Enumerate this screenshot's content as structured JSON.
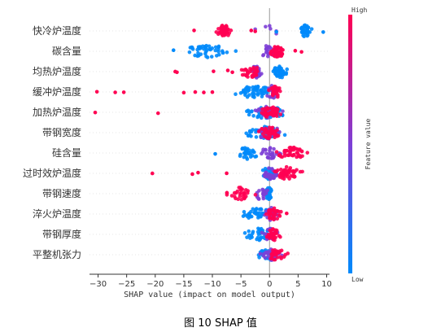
{
  "chart_data": {
    "type": "scatter",
    "subtype": "shap-beeswarm",
    "xlabel": "SHAP value (impact on model output)",
    "xticks": [
      -30,
      -25,
      -20,
      -15,
      -10,
      -5,
      0,
      5,
      10
    ],
    "xlim": [
      -31.5,
      10.5
    ],
    "features": [
      {
        "name": "快冷炉温度",
        "low": [
          [
            5.0,
            7.5,
            40
          ]
        ],
        "high": [
          [
            -9.8,
            -6.2,
            40
          ]
        ],
        "mid": [
          [
            -4,
            4,
            6
          ]
        ],
        "low_out": [
          1.2,
          9.4
        ],
        "high_out": [
          -13.2,
          -3.2,
          -2.5
        ]
      },
      {
        "name": "碳含量",
        "low": [
          [
            -16.5,
            -5.0,
            45
          ]
        ],
        "high": [
          [
            -0.5,
            3.5,
            55
          ]
        ],
        "mid": [
          [
            -2.5,
            1.5,
            20
          ]
        ],
        "low_out": [
          -16.8
        ],
        "high_out": [
          4.5,
          5.6
        ]
      },
      {
        "name": "均热炉温度",
        "low": [
          [
            0.0,
            4.0,
            40
          ]
        ],
        "high": [
          [
            -5.5,
            -1.0,
            35
          ]
        ],
        "mid": [
          [
            -3.5,
            -1.2,
            30
          ]
        ],
        "low_out": [],
        "high_out": [
          -16.5,
          -16.2,
          -9.8,
          -7.3,
          -6.5,
          -2.2
        ]
      },
      {
        "name": "缓冲炉温度",
        "low": [
          [
            -7.2,
            1.8,
            55
          ]
        ],
        "high": [
          [
            -0.5,
            2.5,
            30
          ]
        ],
        "mid": [
          [
            -1.5,
            2.5,
            25
          ]
        ],
        "low_out": [],
        "high_out": [
          -30.2,
          -27.0,
          -25.5,
          -15.0,
          -13.0,
          -11.5,
          -10.0
        ]
      },
      {
        "name": "加热炉温度",
        "low": [
          [
            -5.5,
            4.0,
            45
          ]
        ],
        "high": [
          [
            -2.5,
            2.5,
            45
          ]
        ],
        "mid": [
          [
            -3.0,
            2.5,
            30
          ]
        ],
        "low_out": [],
        "high_out": [
          -30.5,
          -19.5
        ]
      },
      {
        "name": "带钢宽度",
        "low": [
          [
            -5.5,
            3.8,
            40
          ]
        ],
        "high": [
          [
            -3.0,
            3.0,
            35
          ]
        ],
        "mid": [
          [
            -3.5,
            3.0,
            30
          ]
        ],
        "low_out": [],
        "high_out": []
      },
      {
        "name": "硅含量",
        "low": [
          [
            -6.5,
            -1.0,
            30
          ]
        ],
        "high": [
          [
            0.5,
            7.5,
            45
          ]
        ],
        "mid": [
          [
            -2.5,
            2.5,
            30
          ]
        ],
        "low_out": [
          -9.5
        ],
        "high_out": []
      },
      {
        "name": "过时效炉温度",
        "low": [
          [
            -2.0,
            2.0,
            35
          ]
        ],
        "high": [
          [
            0.0,
            6.0,
            45
          ]
        ],
        "mid": [
          [
            -1.5,
            2.0,
            25
          ]
        ],
        "low_out": [],
        "high_out": [
          -20.5,
          -13.5,
          -12.5,
          -7.5
        ]
      },
      {
        "name": "带钢速度",
        "low": [
          [
            -1.0,
            0.8,
            35
          ]
        ],
        "high": [
          [
            -8.5,
            -2.0,
            30
          ]
        ],
        "mid": [
          [
            -4.0,
            0.5,
            20
          ]
        ],
        "low_out": [],
        "high_out": []
      },
      {
        "name": "淬火炉温度",
        "low": [
          [
            -5.5,
            1.5,
            40
          ]
        ],
        "high": [
          [
            -1.0,
            2.5,
            30
          ]
        ],
        "mid": [
          [
            -2.0,
            2.5,
            20
          ]
        ],
        "low_out": [],
        "high_out": [
          3.0
        ]
      },
      {
        "name": "带钢厚度",
        "low": [
          [
            -5.0,
            1.0,
            35
          ]
        ],
        "high": [
          [
            -1.0,
            2.5,
            30
          ]
        ],
        "mid": [
          [
            -2.0,
            2.0,
            25
          ]
        ],
        "low_out": [],
        "high_out": []
      },
      {
        "name": "平整机张力",
        "low": [
          [
            -2.5,
            2.0,
            35
          ]
        ],
        "high": [
          [
            -1.0,
            3.5,
            30
          ]
        ],
        "mid": [
          [
            -2.0,
            2.5,
            25
          ]
        ],
        "low_out": [],
        "high_out": []
      }
    ],
    "colorbar": {
      "label": "Feature value",
      "high": "High",
      "low": "Low"
    },
    "colors": {
      "low": "#008afb",
      "mid": "#7d3fd6",
      "high": "#ff0052",
      "zero_line": "#999999"
    }
  },
  "caption": "图 10 SHAP 值"
}
